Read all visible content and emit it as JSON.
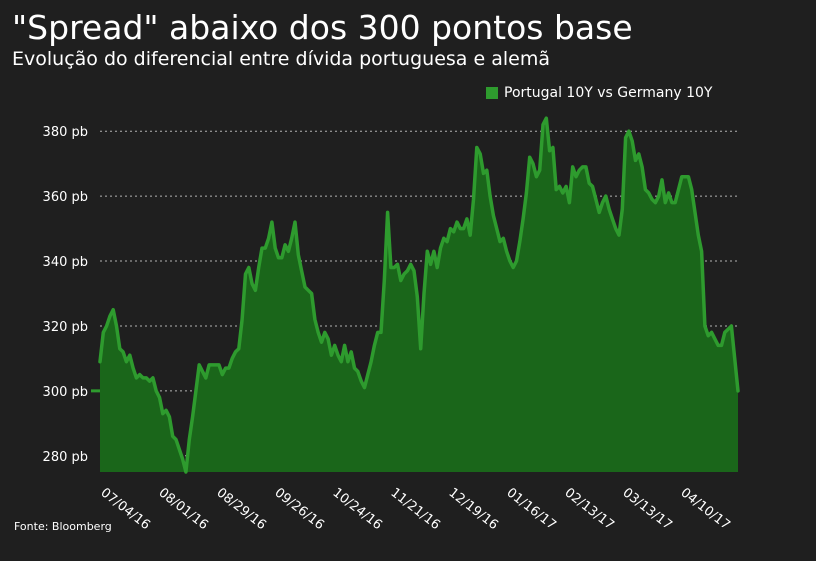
{
  "header": {
    "title": "\"Spread\" abaixo dos 300 pontos base",
    "subtitle": "Evolução do diferencial entre dívida portuguesa e alemã"
  },
  "source": "Fonte: Bloomberg",
  "colors": {
    "background": "#1f1f1f",
    "series": "#2e9b2e",
    "fill": "#1a661a",
    "grid": "#d8d8d8"
  },
  "chart_data": {
    "type": "area",
    "ylim": [
      275,
      385
    ],
    "yticks": [
      {
        "value": 280,
        "label": "280 pb"
      },
      {
        "value": 300,
        "label": "300 pb"
      },
      {
        "value": 320,
        "label": "320 pb"
      },
      {
        "value": 340,
        "label": "340 pb"
      },
      {
        "value": 360,
        "label": "360 pb"
      },
      {
        "value": 380,
        "label": "380 pb"
      }
    ],
    "xticks": [
      "07/04/16",
      "08/01/16",
      "08/29/16",
      "09/26/16",
      "10/24/16",
      "11/21/16",
      "12/19/16",
      "01/16/17",
      "02/13/17",
      "03/13/17",
      "04/10/17"
    ],
    "grid": true,
    "legend_position": "top-right",
    "series": [
      {
        "name": "Portugal 10Y vs Germany 10Y",
        "values": [
          309,
          318,
          320,
          323,
          325,
          320,
          313,
          312,
          309,
          311,
          307,
          304,
          305,
          304,
          304,
          303,
          304,
          300,
          298,
          293,
          294,
          292,
          286,
          285,
          282,
          279,
          275,
          285,
          292,
          300,
          308,
          306,
          304,
          308,
          308,
          308,
          308,
          305,
          307,
          307,
          310,
          312,
          313,
          322,
          336,
          338,
          333,
          331,
          338,
          344,
          344,
          347,
          352,
          344,
          341,
          341,
          345,
          343,
          347,
          352,
          342,
          337,
          332,
          331,
          330,
          322,
          318,
          315,
          318,
          316,
          311,
          314,
          311,
          309,
          314,
          309,
          312,
          307,
          306,
          303,
          301,
          305,
          309,
          314,
          318,
          318,
          334,
          355,
          338,
          338,
          339,
          334,
          336,
          337,
          339,
          337,
          329,
          313,
          330,
          343,
          339,
          343,
          338,
          344,
          347,
          346,
          350,
          349,
          352,
          350,
          350,
          353,
          348,
          359,
          375,
          373,
          367,
          368,
          360,
          354,
          350,
          346,
          347,
          343,
          340,
          338,
          340,
          346,
          353,
          361,
          372,
          370,
          366,
          368,
          382,
          384,
          374,
          375,
          362,
          363,
          361,
          363,
          358,
          369,
          366,
          368,
          369,
          369,
          364,
          363,
          359,
          355,
          358,
          360,
          356,
          353,
          350,
          348,
          356,
          378,
          380,
          377,
          371,
          373,
          369,
          362,
          361,
          359,
          358,
          360,
          365,
          358,
          361,
          358,
          358,
          362,
          366,
          366,
          366,
          362,
          355,
          348,
          343,
          320,
          317,
          318,
          316,
          314,
          314,
          318,
          319,
          320,
          310,
          300
        ]
      }
    ]
  }
}
